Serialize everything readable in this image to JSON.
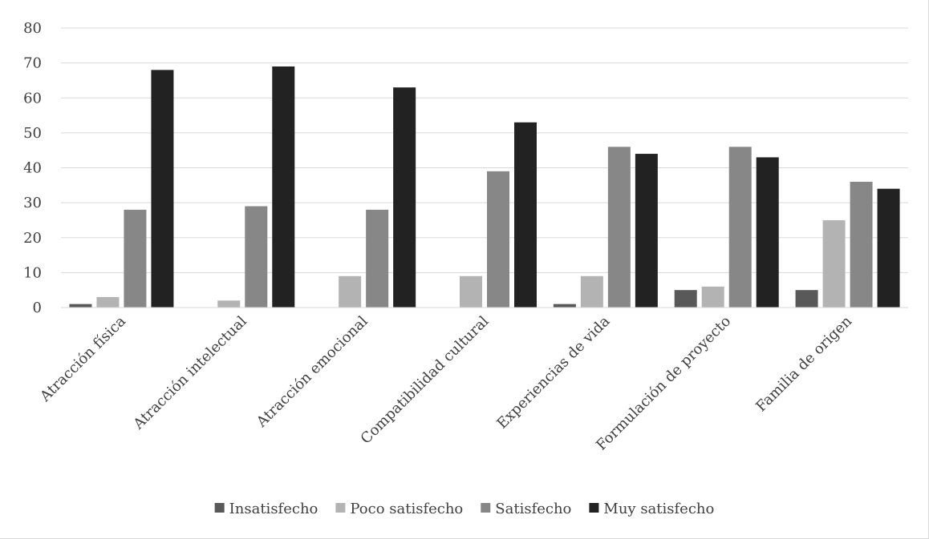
{
  "chart_data": {
    "type": "bar",
    "title": "",
    "xlabel": "",
    "ylabel": "",
    "ylim": [
      0,
      80
    ],
    "yticks": [
      0,
      10,
      20,
      30,
      40,
      50,
      60,
      70,
      80
    ],
    "grid": true,
    "legend_position": "bottom",
    "categories": [
      "Atracción física",
      "Atracción intelectual",
      "Atracción emocional",
      "Compatibilidad cultural",
      "Experiencias de vida",
      "Formulación de proyecto",
      "Familia de origen"
    ],
    "series": [
      {
        "name": "Insatisfecho",
        "color": "#595959",
        "values": [
          1,
          0,
          0,
          0,
          1,
          5,
          5
        ]
      },
      {
        "name": "Poco satisfecho",
        "color": "#b3b3b3",
        "values": [
          3,
          2,
          9,
          9,
          9,
          6,
          25
        ]
      },
      {
        "name": "Satisfecho",
        "color": "#878787",
        "values": [
          28,
          29,
          28,
          39,
          46,
          46,
          36
        ]
      },
      {
        "name": "Muy satisfecho",
        "color": "#222222",
        "values": [
          68,
          69,
          63,
          53,
          44,
          43,
          34
        ]
      }
    ]
  }
}
